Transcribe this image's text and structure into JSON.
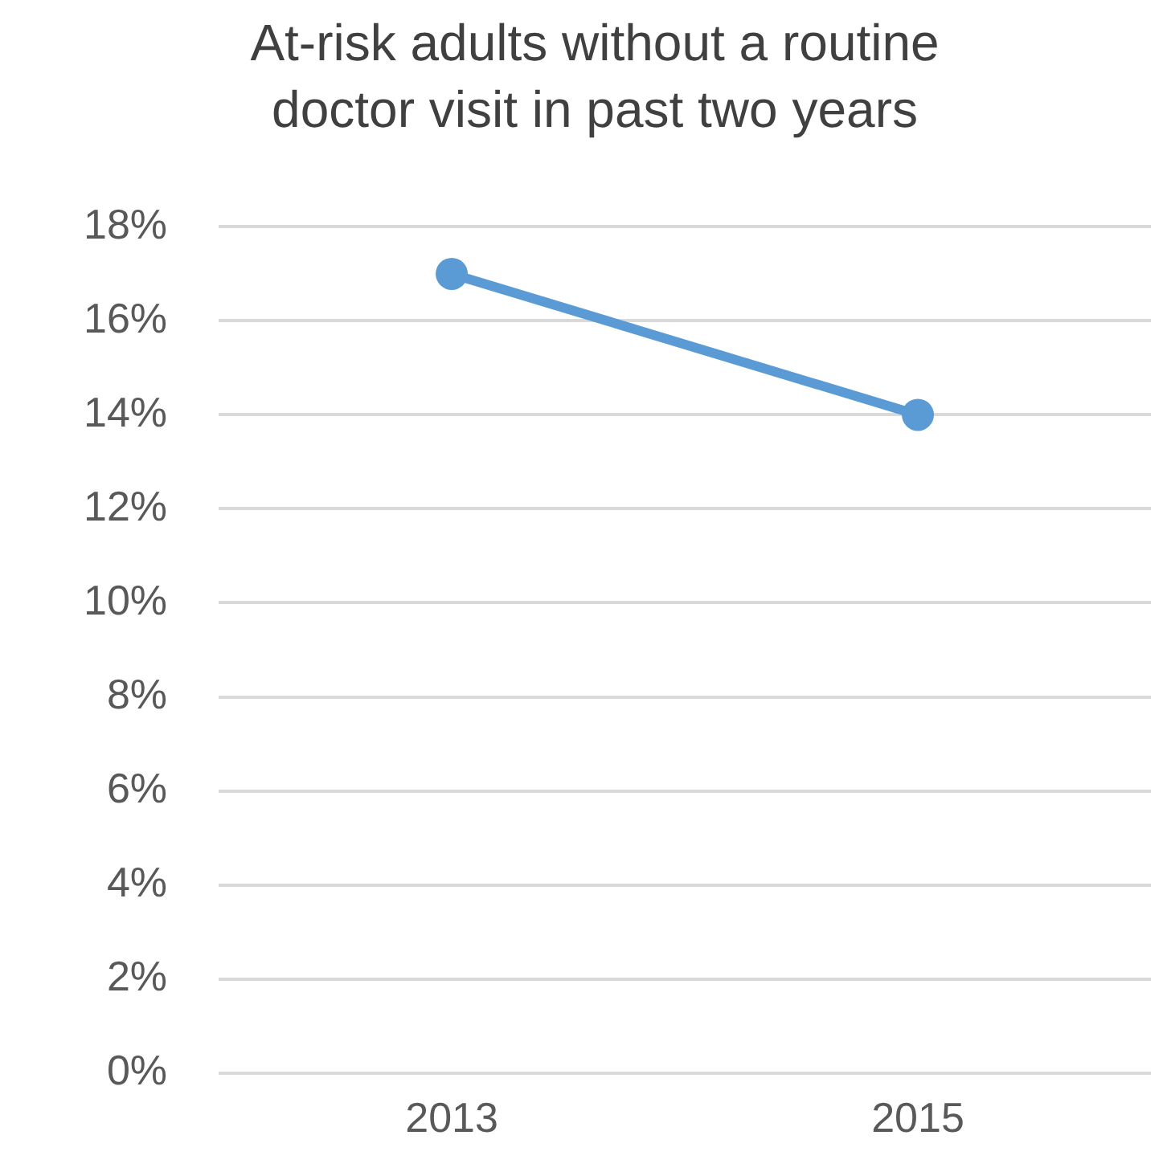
{
  "chart_data": {
    "type": "line",
    "title": [
      "At-risk adults without a routine",
      "doctor visit in past two years"
    ],
    "categories": [
      "2013",
      "2015"
    ],
    "series": [
      {
        "color": "#5b9bd5",
        "values": [
          17,
          14
        ]
      }
    ],
    "ylim": [
      0,
      18
    ],
    "yticks": [
      {
        "value": 0,
        "label": "0%"
      },
      {
        "value": 2,
        "label": "2%"
      },
      {
        "value": 4,
        "label": "4%"
      },
      {
        "value": 6,
        "label": "6%"
      },
      {
        "value": 8,
        "label": "8%"
      },
      {
        "value": 10,
        "label": "10%"
      },
      {
        "value": 12,
        "label": "12%"
      },
      {
        "value": 14,
        "label": "14%"
      },
      {
        "value": 16,
        "label": "16%"
      },
      {
        "value": 18,
        "label": "18%"
      }
    ],
    "grid": "y",
    "legend": false,
    "marker": "circle",
    "line_style": "solid"
  }
}
